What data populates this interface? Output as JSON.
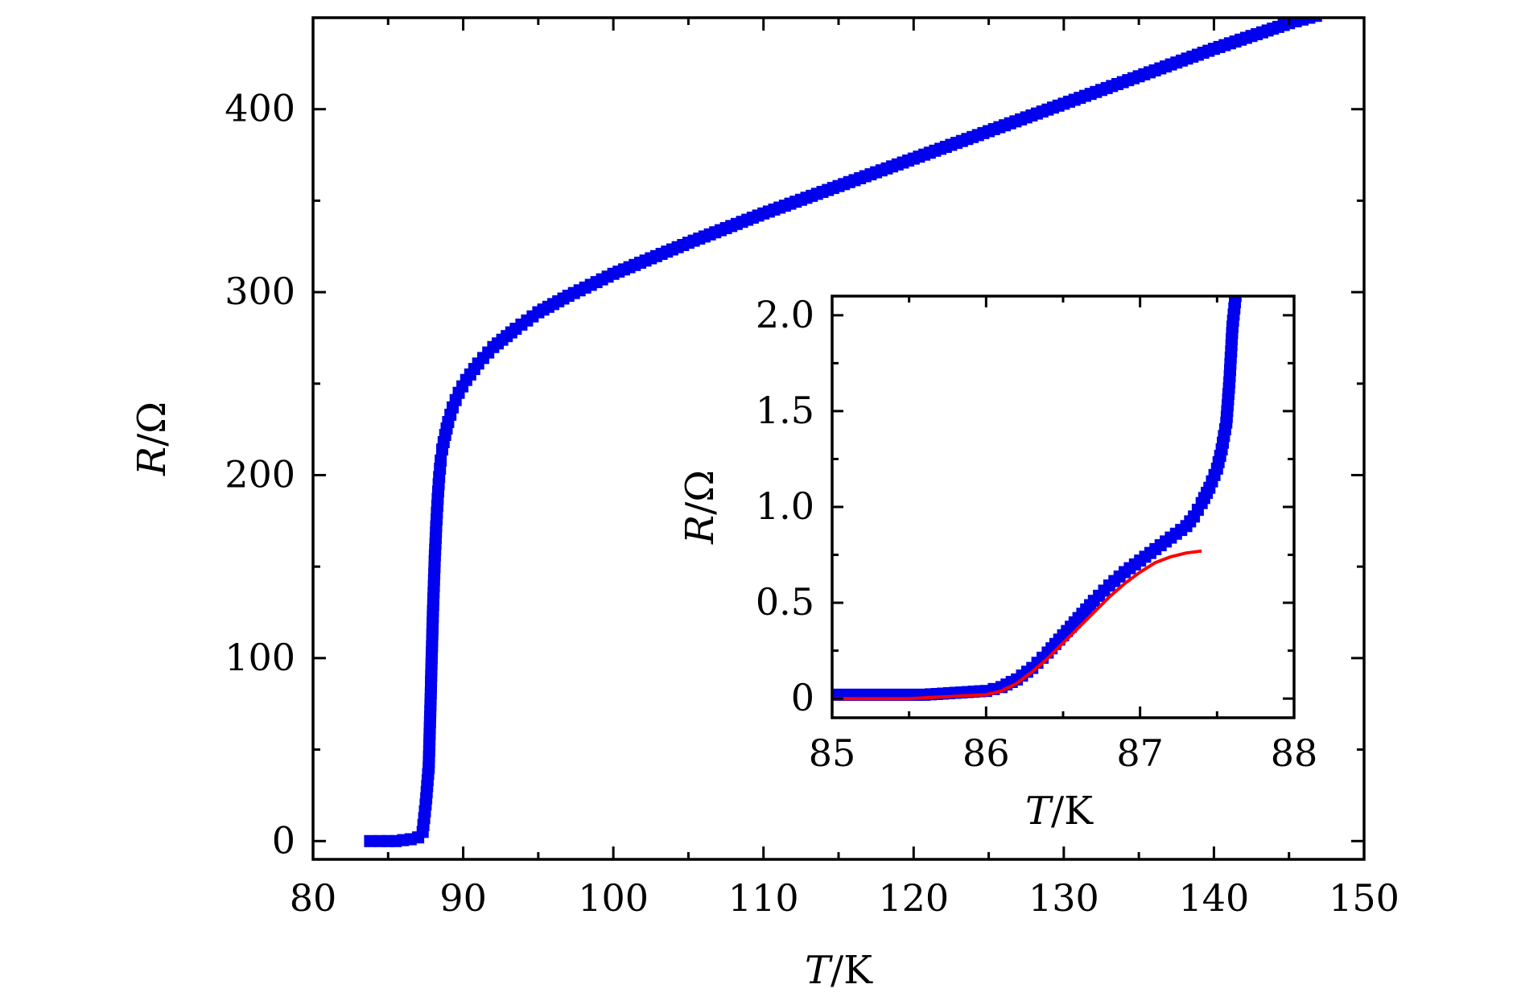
{
  "chart_data": [
    {
      "type": "scatter",
      "panel": "main",
      "title": "",
      "xlabel": {
        "italic": "T",
        "unit": "/K"
      },
      "ylabel": {
        "italic": "R",
        "unit": "/Ω"
      },
      "xlim": [
        80,
        150
      ],
      "ylim": [
        -10,
        450
      ],
      "xticks": [
        80,
        90,
        100,
        110,
        120,
        130,
        140,
        150
      ],
      "yticks": [
        0,
        100,
        200,
        300,
        400
      ],
      "grid": false,
      "series": [
        {
          "color": "#0000ee",
          "marker": "square",
          "x": [
            83.8,
            84.5,
            85.0,
            85.5,
            86.0,
            86.5,
            87.0,
            87.3,
            87.5,
            87.7,
            87.8,
            87.9,
            88.0,
            88.1,
            88.2,
            88.3,
            88.4,
            88.5,
            88.6,
            88.8,
            89.0,
            89.3,
            89.7,
            90.2,
            91.0,
            92.0,
            93.5,
            95.0,
            97.0,
            100.0,
            105.0,
            110.0,
            115.0,
            120.0,
            125.0,
            130.0,
            135.0,
            140.0,
            145.0,
            146.8
          ],
          "y": [
            0.0,
            0.0,
            0.0,
            0.0,
            0.5,
            1.0,
            2.0,
            5.0,
            20.0,
            40.0,
            68.0,
            100.0,
            129.0,
            153.0,
            172.0,
            187.0,
            199.0,
            208.0,
            214.0,
            222.0,
            229.0,
            237.0,
            245.0,
            252.0,
            261.0,
            270.0,
            280.0,
            289.0,
            298.0,
            310.0,
            327.0,
            343.0,
            358.0,
            373.0,
            388.0,
            403.0,
            418.0,
            433.0,
            447.0,
            451.0
          ]
        }
      ]
    },
    {
      "type": "scatter",
      "panel": "inset",
      "title": "",
      "xlabel": {
        "italic": "T",
        "unit": "/K"
      },
      "ylabel": {
        "italic": "R",
        "unit": "/Ω"
      },
      "xlim": [
        85,
        88
      ],
      "ylim": [
        -0.1,
        2.1
      ],
      "xticks": [
        85,
        86,
        87,
        88
      ],
      "xtick_labels": [
        "85",
        "86",
        "87",
        "88"
      ],
      "yticks": [
        0,
        0.5,
        1.0,
        1.5,
        2.0
      ],
      "ytick_labels": [
        "0",
        "0.5",
        "1.0",
        "1.5",
        "2.0"
      ],
      "grid": false,
      "series": [
        {
          "color": "#0000ee",
          "marker": "square",
          "x": [
            85.0,
            85.2,
            85.4,
            85.6,
            85.8,
            86.0,
            86.1,
            86.2,
            86.3,
            86.4,
            86.5,
            86.6,
            86.7,
            86.8,
            86.9,
            87.0,
            87.1,
            87.2,
            87.3,
            87.35,
            87.4,
            87.45,
            87.5,
            87.53,
            87.56,
            87.58,
            87.6,
            87.62
          ],
          "y": [
            0.02,
            0.02,
            0.02,
            0.02,
            0.03,
            0.04,
            0.06,
            0.1,
            0.16,
            0.24,
            0.33,
            0.42,
            0.51,
            0.59,
            0.66,
            0.72,
            0.78,
            0.84,
            0.9,
            0.95,
            1.02,
            1.1,
            1.2,
            1.3,
            1.44,
            1.65,
            1.94,
            2.1
          ]
        },
        {
          "color": "#ff0000",
          "marker": "none",
          "x": [
            85.0,
            85.5,
            86.0,
            86.1,
            86.2,
            86.3,
            86.4,
            86.5,
            86.6,
            86.7,
            86.8,
            86.9,
            87.0,
            87.1,
            87.2,
            87.3,
            87.4
          ],
          "y": [
            0.0,
            0.0,
            0.02,
            0.04,
            0.08,
            0.14,
            0.21,
            0.29,
            0.37,
            0.45,
            0.53,
            0.6,
            0.66,
            0.71,
            0.74,
            0.76,
            0.77
          ]
        }
      ]
    }
  ]
}
